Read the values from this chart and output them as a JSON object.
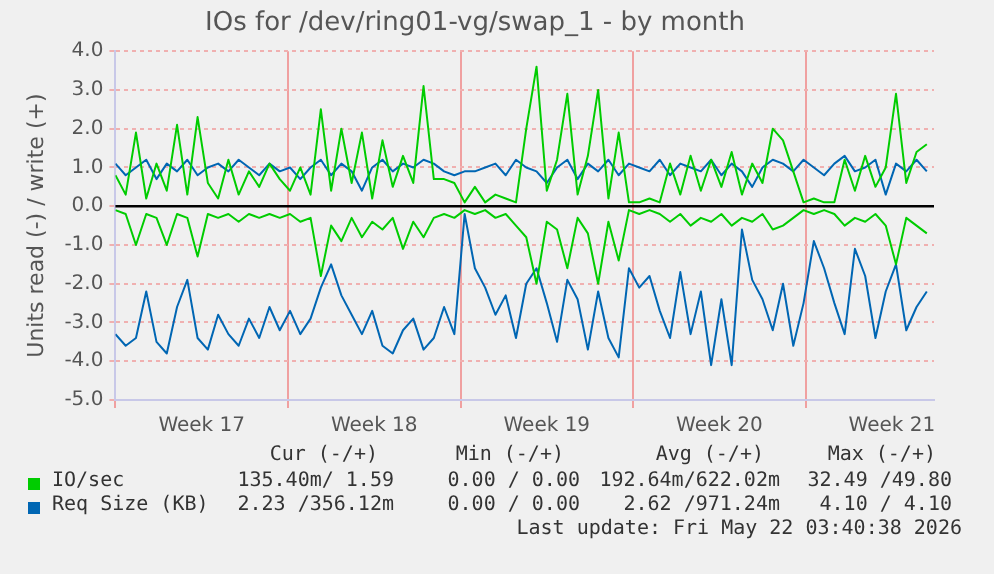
{
  "chart_data": {
    "type": "line",
    "title": "IOs for /dev/ring01-vg/swap_1 - by month",
    "ylabel": "Units read (-) / write (+)",
    "x": [
      "2026-04-20T00:00",
      "2026-04-20T10:00",
      "2026-04-20T20:00",
      "2026-04-21T06:00",
      "2026-04-21T16:00",
      "2026-04-22T02:00",
      "2026-04-22T12:00",
      "2026-04-22T22:00",
      "2026-04-23T08:00",
      "2026-04-23T18:00",
      "2026-04-24T04:00",
      "2026-04-24T14:00",
      "2026-04-25T00:00",
      "2026-04-25T10:00",
      "2026-04-25T20:00",
      "2026-04-26T06:00",
      "2026-04-26T16:00",
      "2026-04-27T02:00",
      "2026-04-27T12:00",
      "2026-04-27T22:00",
      "2026-04-28T08:00",
      "2026-04-28T18:00",
      "2026-04-29T04:00",
      "2026-04-29T14:00",
      "2026-04-30T00:00",
      "2026-04-30T10:00",
      "2026-04-30T20:00",
      "2026-05-01T06:00",
      "2026-05-01T16:00",
      "2026-05-02T02:00",
      "2026-05-02T12:00",
      "2026-05-02T22:00",
      "2026-05-03T08:00",
      "2026-05-03T18:00",
      "2026-05-04T04:00",
      "2026-05-04T14:00",
      "2026-05-05T00:00",
      "2026-05-05T10:00",
      "2026-05-05T20:00",
      "2026-05-06T06:00",
      "2026-05-06T16:00",
      "2026-05-07T02:00",
      "2026-05-07T12:00",
      "2026-05-07T22:00",
      "2026-05-08T08:00",
      "2026-05-08T18:00",
      "2026-05-09T04:00",
      "2026-05-09T14:00",
      "2026-05-10T00:00",
      "2026-05-10T10:00",
      "2026-05-10T20:00",
      "2026-05-11T06:00",
      "2026-05-11T16:00",
      "2026-05-12T02:00",
      "2026-05-12T12:00",
      "2026-05-12T22:00",
      "2026-05-13T08:00",
      "2026-05-13T18:00",
      "2026-05-14T04:00",
      "2026-05-14T14:00",
      "2026-05-15T00:00",
      "2026-05-15T10:00",
      "2026-05-15T20:00",
      "2026-05-16T06:00",
      "2026-05-16T16:00",
      "2026-05-17T02:00",
      "2026-05-17T12:00",
      "2026-05-17T22:00",
      "2026-05-18T08:00",
      "2026-05-18T18:00",
      "2026-05-19T04:00",
      "2026-05-19T14:00",
      "2026-05-20T00:00",
      "2026-05-20T10:00",
      "2026-05-20T20:00",
      "2026-05-21T06:00",
      "2026-05-21T16:00",
      "2026-05-22T02:00",
      "2026-05-22T12:00",
      "2026-05-22T22:00"
    ],
    "series": [
      {
        "name": "IO/sec",
        "color": "#00cc00",
        "values": [
          0.8,
          0.3,
          1.9,
          0.2,
          1.1,
          0.4,
          2.1,
          0.3,
          2.3,
          0.6,
          0.2,
          1.2,
          0.3,
          0.9,
          0.5,
          1.1,
          0.7,
          0.4,
          1.0,
          0.3,
          2.5,
          0.4,
          2.0,
          0.6,
          1.9,
          0.2,
          1.7,
          0.5,
          1.3,
          0.6,
          3.1,
          0.7,
          0.7,
          0.6,
          0.1,
          0.5,
          0.1,
          0.3,
          0.2,
          0.1,
          2.0,
          3.6,
          0.4,
          1.2,
          2.9,
          0.3,
          1.3,
          3.0,
          0.2,
          1.9,
          0.1,
          0.1,
          0.2,
          0.1,
          1.1,
          0.3,
          1.3,
          0.4,
          1.2,
          0.5,
          1.4,
          0.3,
          1.1,
          0.6,
          2.0,
          1.7,
          0.9,
          0.1,
          0.2,
          0.1,
          0.1,
          1.2,
          0.4,
          1.3,
          0.5,
          1.0,
          2.9,
          0.6,
          1.4,
          1.6
        ]
      },
      {
        "color": "#00cc00",
        "values": [
          -0.1,
          -0.2,
          -1.0,
          -0.2,
          -0.3,
          -1.0,
          -0.2,
          -0.3,
          -1.3,
          -0.2,
          -0.3,
          -0.2,
          -0.4,
          -0.2,
          -0.3,
          -0.2,
          -0.3,
          -0.2,
          -0.4,
          -0.3,
          -1.8,
          -0.5,
          -0.9,
          -0.3,
          -0.8,
          -0.4,
          -0.6,
          -0.3,
          -1.1,
          -0.4,
          -0.8,
          -0.3,
          -0.2,
          -0.3,
          -0.1,
          -0.2,
          -0.1,
          -0.3,
          -0.2,
          -0.5,
          -0.8,
          -2.0,
          -0.4,
          -0.6,
          -1.6,
          -0.3,
          -0.7,
          -2.0,
          -0.4,
          -1.4,
          -0.1,
          -0.2,
          -0.1,
          -0.2,
          -0.4,
          -0.2,
          -0.5,
          -0.3,
          -0.4,
          -0.2,
          -0.5,
          -0.3,
          -0.4,
          -0.2,
          -0.6,
          -0.5,
          -0.3,
          -0.1,
          -0.2,
          -0.1,
          -0.2,
          -0.5,
          -0.3,
          -0.4,
          -0.2,
          -0.5,
          -1.5,
          -0.3,
          -0.5,
          -0.7
        ]
      },
      {
        "name": "Req Size (KB)",
        "color": "#0066b3",
        "values": [
          1.1,
          0.8,
          1.0,
          1.2,
          0.7,
          1.1,
          0.9,
          1.2,
          0.8,
          1.0,
          1.1,
          0.9,
          1.2,
          1.0,
          0.8,
          1.1,
          0.9,
          1.0,
          0.7,
          1.0,
          1.2,
          0.8,
          1.1,
          0.9,
          0.4,
          1.0,
          1.2,
          0.9,
          1.1,
          1.0,
          1.2,
          1.1,
          0.9,
          0.8,
          0.9,
          0.9,
          1.0,
          1.1,
          0.8,
          1.2,
          1.0,
          0.9,
          0.6,
          1.0,
          1.2,
          0.7,
          1.1,
          0.9,
          1.2,
          0.8,
          1.1,
          1.0,
          0.9,
          1.2,
          0.8,
          1.1,
          1.0,
          0.9,
          1.2,
          0.8,
          1.1,
          0.9,
          0.5,
          1.0,
          1.2,
          1.1,
          0.9,
          1.2,
          1.0,
          0.8,
          1.1,
          1.3,
          0.9,
          1.0,
          1.2,
          0.3,
          1.1,
          0.9,
          1.2,
          0.9
        ]
      },
      {
        "color": "#0066b3",
        "values": [
          -3.3,
          -3.6,
          -3.4,
          -2.2,
          -3.5,
          -3.8,
          -2.6,
          -1.9,
          -3.4,
          -3.7,
          -2.8,
          -3.3,
          -3.6,
          -2.9,
          -3.4,
          -2.6,
          -3.2,
          -2.7,
          -3.3,
          -2.9,
          -2.1,
          -1.5,
          -2.3,
          -2.8,
          -3.3,
          -2.7,
          -3.6,
          -3.8,
          -3.2,
          -2.9,
          -3.7,
          -3.4,
          -2.6,
          -3.3,
          -0.2,
          -1.6,
          -2.1,
          -2.8,
          -2.3,
          -3.4,
          -2.0,
          -1.6,
          -2.5,
          -3.5,
          -1.9,
          -2.4,
          -3.7,
          -2.2,
          -3.4,
          -3.9,
          -1.6,
          -2.1,
          -1.8,
          -2.7,
          -3.4,
          -1.7,
          -3.3,
          -2.2,
          -4.1,
          -2.4,
          -4.1,
          -0.6,
          -1.9,
          -2.4,
          -3.2,
          -2.0,
          -3.6,
          -2.5,
          -0.9,
          -1.6,
          -2.5,
          -3.3,
          -1.1,
          -1.8,
          -3.4,
          -2.2,
          -1.5,
          -3.2,
          -2.6,
          -2.2
        ]
      }
    ],
    "xlim": [
      "2026-04-20T00:00",
      "2026-05-23T05:00"
    ],
    "xticks": [
      {
        "value": "2026-04-20",
        "label": null
      },
      {
        "value": "2026-04-23T12:00",
        "label": "Week 17"
      },
      {
        "value": "2026-04-27",
        "label": null
      },
      {
        "value": "2026-04-30T12:00",
        "label": "Week 18"
      },
      {
        "value": "2026-05-04",
        "label": null
      },
      {
        "value": "2026-05-07T12:00",
        "label": "Week 19"
      },
      {
        "value": "2026-05-11",
        "label": null
      },
      {
        "value": "2026-05-14T12:00",
        "label": "Week 20"
      },
      {
        "value": "2026-05-18",
        "label": null
      },
      {
        "value": "2026-05-21T12:00",
        "label": "Week 21"
      }
    ],
    "ylim": [
      -5,
      4
    ],
    "yticks": [
      {
        "value": -5,
        "label": "-5.0"
      },
      {
        "value": -4,
        "label": "-4.0"
      },
      {
        "value": -3,
        "label": "-3.0"
      },
      {
        "value": -2,
        "label": "-2.0"
      },
      {
        "value": -1,
        "label": "-1.0"
      },
      {
        "value": 0,
        "label": "0.0"
      },
      {
        "value": 1,
        "label": "1.0"
      },
      {
        "value": 2,
        "label": "2.0"
      },
      {
        "value": 3,
        "label": "3.0"
      },
      {
        "value": 4,
        "label": "4.0"
      }
    ],
    "ref_lines": [
      {
        "axis": "y",
        "value": 0,
        "color": "#000000"
      }
    ],
    "grid": true,
    "legend": "bottom",
    "marker": "none",
    "line_style": "solid",
    "annotations": [
      "Cur (-/+)",
      "Min (-/+)",
      "Avg (-/+)",
      "Max (-/+)",
      "135.40m/ 1.59",
      "0.00 / 0.00",
      "192.64m/622.02m",
      "32.49 /49.80",
      "2.23 /356.12m",
      "0.00 / 0.00",
      "2.62 /971.24m",
      "4.10 / 4.10",
      "Last update: Fri May 22 03:40:38 2026"
    ]
  }
}
